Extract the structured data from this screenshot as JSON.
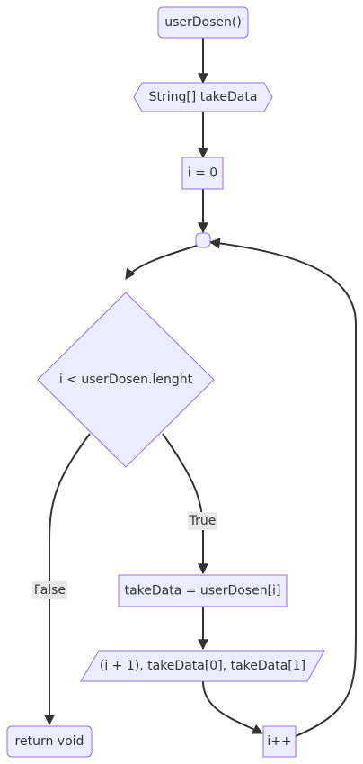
{
  "diagram": {
    "type": "flowchart",
    "nodes": {
      "start": "userDosen()",
      "declare": "String[] takeData",
      "init": "i = 0",
      "condition": "i < userDosen.lenght",
      "assign": "takeData = userDosen[i]",
      "output": "(i + 1), takeData[0], takeData[1]",
      "increment": "i++",
      "end": "return void"
    },
    "edge_labels": {
      "true_branch": "True",
      "false_branch": "False"
    },
    "colors": {
      "node_fill": "#ECECFF",
      "node_stroke": "#9370DB",
      "edge": "#333333",
      "label_background": "#e8e8e8"
    }
  }
}
